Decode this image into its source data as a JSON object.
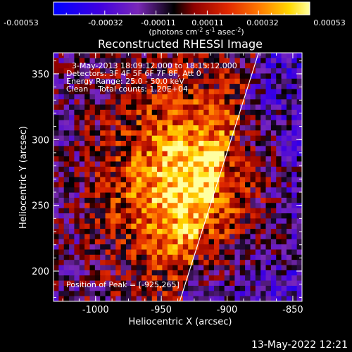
{
  "colorbar": {
    "tick_labels": [
      "-0.00053",
      "-0.00032",
      "-0.00011",
      "0.00011",
      "0.00032",
      "0.00053"
    ],
    "unit_text": "(photons cm",
    "unit_sup1": "-2",
    "unit_mid": " s",
    "unit_sup2": "-1",
    "unit_mid2": " asec",
    "unit_sup3": "-2",
    "unit_end": ")",
    "range": [
      -0.00053,
      0.00053
    ]
  },
  "chart_data": {
    "type": "heatmap",
    "title": "Reconstructed RHESSI Image",
    "xlabel": "Heliocentric X (arcsec)",
    "ylabel": "Heliocentric Y (arcsec)",
    "xlim": [
      -1032,
      -843
    ],
    "ylim": [
      177,
      366
    ],
    "xticks": [
      -1000,
      -950,
      -900,
      -850
    ],
    "yticks": [
      200,
      250,
      300,
      350
    ],
    "xtick_labels": [
      "-1000",
      "-950",
      "-900",
      "-850"
    ],
    "ytick_labels": [
      "200",
      "250",
      "300",
      "350"
    ],
    "peak": [
      -925,
      265
    ],
    "limb_line": [
      [
        -936,
        177
      ],
      [
        -876,
        366
      ]
    ]
  },
  "annotations": {
    "time_range": "3-May-2013 18:09:12.000 to 18:15:12.000",
    "detectors": "Detectors: 3F 4F 5F 6F 7F 8F, Att 0",
    "energy": "Energy Range: 25.0 - 50.0 keV",
    "clean": "Clean    Total counts: 1.20E+04",
    "peak_text": "Position of Peak = [-925,265]"
  },
  "footer": {
    "timestamp": "13-May-2022 12:21"
  },
  "colors": {
    "background": "#000000",
    "foreground": "#ffffff",
    "colormap_stops": [
      "#0000ff",
      "#5000d0",
      "#8030b0",
      "#000000",
      "#b00000",
      "#ff5000",
      "#ffd000",
      "#ffff90"
    ]
  }
}
